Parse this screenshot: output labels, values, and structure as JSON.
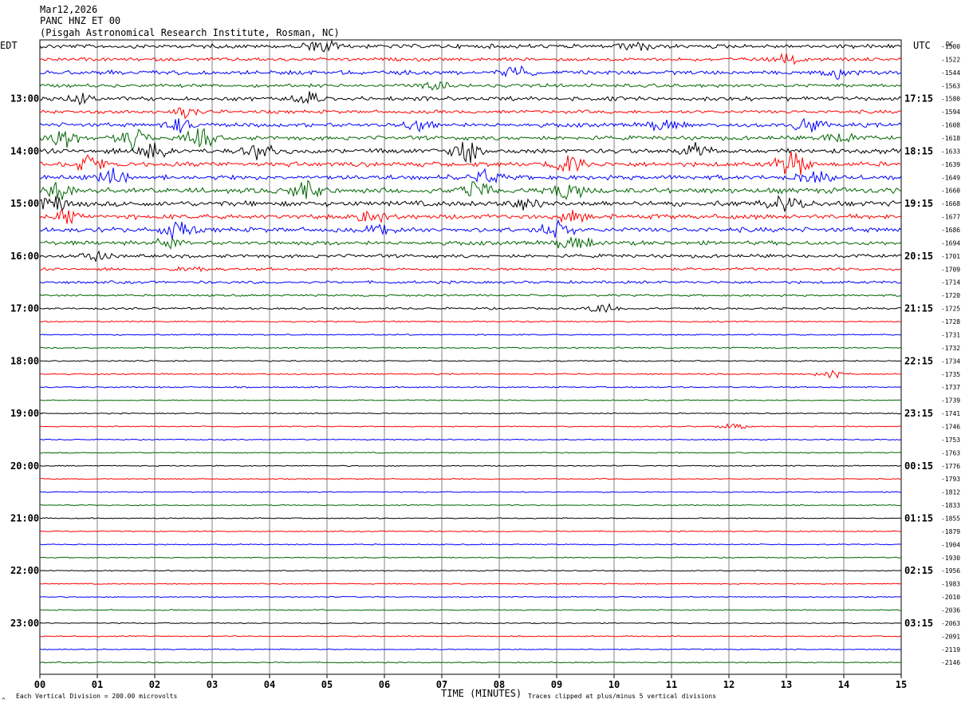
{
  "header": {
    "date": "Mar12,2026",
    "station": "PANC HNZ ET 00",
    "location": "(Pisgah Astronomical Research Institute, Rosman, NC)"
  },
  "left_timezone": "EDT",
  "right_timezone": "UTC",
  "dc_header": "DC",
  "footer": {
    "vertical_division": "Each Vertical Division =  200.00 microvolts",
    "clip_note": "Traces clipped at plus/minus 5 vertical divisions",
    "corner_mark": "^"
  },
  "colors": {
    "trace_cycle": [
      "#000000",
      "#ff0000",
      "#0000ff",
      "#006600"
    ],
    "grid": "#808080"
  },
  "chart_data": {
    "type": "line",
    "title": "PANC HNZ ET 00",
    "xlabel": "TIME (MINUTES)",
    "ylabel": "",
    "x_range": [
      0,
      15
    ],
    "x_ticks": [
      "00",
      "01",
      "02",
      "03",
      "04",
      "05",
      "06",
      "07",
      "08",
      "09",
      "10",
      "11",
      "12",
      "13",
      "14",
      "15"
    ],
    "left_hour_labels": [
      "13:00",
      "14:00",
      "15:00",
      "16:00",
      "17:00",
      "18:00",
      "19:00",
      "20:00",
      "21:00",
      "22:00",
      "23:00"
    ],
    "right_hour_labels": [
      "17:15",
      "18:15",
      "19:15",
      "20:15",
      "21:15",
      "22:15",
      "23:15",
      "00:15",
      "01:15",
      "02:15",
      "03:15"
    ],
    "dc_offsets": [
      "-1500",
      "-1522",
      "-1544",
      "-1563",
      "-1580",
      "-1594",
      "-1608",
      "-1618",
      "-1633",
      "-1639",
      "-1649",
      "-1660",
      "-1668",
      "-1677",
      "-1686",
      "-1694",
      "-1701",
      "-1709",
      "-1714",
      "-1720",
      "-1725",
      "-1728",
      "-1731",
      "-1732",
      "-1734",
      "-1735",
      "-1737",
      "-1739",
      "-1741",
      "-1746",
      "-1753",
      "-1763",
      "-1776",
      "-1793",
      "-1812",
      "-1833",
      "-1855",
      "-1879",
      "-1904",
      "-1930",
      "-1956",
      "-1983",
      "-2010",
      "-2036",
      "-2063",
      "-2091",
      "-2119",
      "-2146"
    ],
    "trace_noise_amplitude": [
      3,
      2.5,
      3,
      2.5,
      3,
      2.5,
      3,
      3,
      3.5,
      3.5,
      3.5,
      4,
      4,
      3.5,
      3.5,
      3,
      2.5,
      2,
      2,
      1.5,
      1.5,
      1,
      1,
      1,
      1,
      1,
      1,
      0.8,
      0.8,
      0.8,
      0.8,
      0.8,
      0.8,
      0.8,
      0.8,
      0.8,
      0.8,
      0.8,
      0.8,
      0.8,
      0.8,
      0.8,
      0.8,
      0.8,
      0.8,
      0.8,
      0.8,
      0.8
    ],
    "bursts": [
      {
        "trace": 0,
        "minute": 4.9,
        "amp": 8
      },
      {
        "trace": 0,
        "minute": 10.4,
        "amp": 5
      },
      {
        "trace": 1,
        "minute": 13.0,
        "amp": 5
      },
      {
        "trace": 2,
        "minute": 8.3,
        "amp": 6
      },
      {
        "trace": 2,
        "minute": 13.9,
        "amp": 6
      },
      {
        "trace": 3,
        "minute": 6.8,
        "amp": 5
      },
      {
        "trace": 4,
        "minute": 0.7,
        "amp": 6
      },
      {
        "trace": 4,
        "minute": 4.7,
        "amp": 5
      },
      {
        "trace": 5,
        "minute": 2.5,
        "amp": 5
      },
      {
        "trace": 6,
        "minute": 2.4,
        "amp": 6
      },
      {
        "trace": 6,
        "minute": 6.6,
        "amp": 7
      },
      {
        "trace": 6,
        "minute": 10.9,
        "amp": 7
      },
      {
        "trace": 6,
        "minute": 13.4,
        "amp": 9
      },
      {
        "trace": 7,
        "minute": 0.4,
        "amp": 10
      },
      {
        "trace": 7,
        "minute": 1.6,
        "amp": 12
      },
      {
        "trace": 7,
        "minute": 2.8,
        "amp": 10
      },
      {
        "trace": 7,
        "minute": 13.9,
        "amp": 7
      },
      {
        "trace": 8,
        "minute": 2.0,
        "amp": 9
      },
      {
        "trace": 8,
        "minute": 3.8,
        "amp": 9
      },
      {
        "trace": 8,
        "minute": 7.4,
        "amp": 14
      },
      {
        "trace": 8,
        "minute": 11.4,
        "amp": 8
      },
      {
        "trace": 9,
        "minute": 0.9,
        "amp": 9
      },
      {
        "trace": 9,
        "minute": 9.2,
        "amp": 12
      },
      {
        "trace": 9,
        "minute": 13.1,
        "amp": 16
      },
      {
        "trace": 10,
        "minute": 1.3,
        "amp": 8
      },
      {
        "trace": 10,
        "minute": 7.8,
        "amp": 8
      },
      {
        "trace": 10,
        "minute": 13.5,
        "amp": 6
      },
      {
        "trace": 11,
        "minute": 0.3,
        "amp": 10
      },
      {
        "trace": 11,
        "minute": 4.6,
        "amp": 10
      },
      {
        "trace": 11,
        "minute": 7.6,
        "amp": 9
      },
      {
        "trace": 11,
        "minute": 9.2,
        "amp": 12
      },
      {
        "trace": 12,
        "minute": 0.2,
        "amp": 10
      },
      {
        "trace": 12,
        "minute": 8.5,
        "amp": 10
      },
      {
        "trace": 12,
        "minute": 13.0,
        "amp": 9
      },
      {
        "trace": 13,
        "minute": 0.5,
        "amp": 6
      },
      {
        "trace": 13,
        "minute": 5.8,
        "amp": 7
      },
      {
        "trace": 13,
        "minute": 9.3,
        "amp": 6
      },
      {
        "trace": 14,
        "minute": 2.4,
        "amp": 9
      },
      {
        "trace": 14,
        "minute": 6.0,
        "amp": 7
      },
      {
        "trace": 14,
        "minute": 9.0,
        "amp": 11
      },
      {
        "trace": 15,
        "minute": 2.3,
        "amp": 5
      },
      {
        "trace": 15,
        "minute": 9.3,
        "amp": 9
      },
      {
        "trace": 16,
        "minute": 1.0,
        "amp": 6
      },
      {
        "trace": 17,
        "minute": 2.6,
        "amp": 4
      },
      {
        "trace": 20,
        "minute": 9.8,
        "amp": 5
      },
      {
        "trace": 25,
        "minute": 13.8,
        "amp": 4
      },
      {
        "trace": 29,
        "minute": 12.1,
        "amp": 3
      }
    ]
  }
}
